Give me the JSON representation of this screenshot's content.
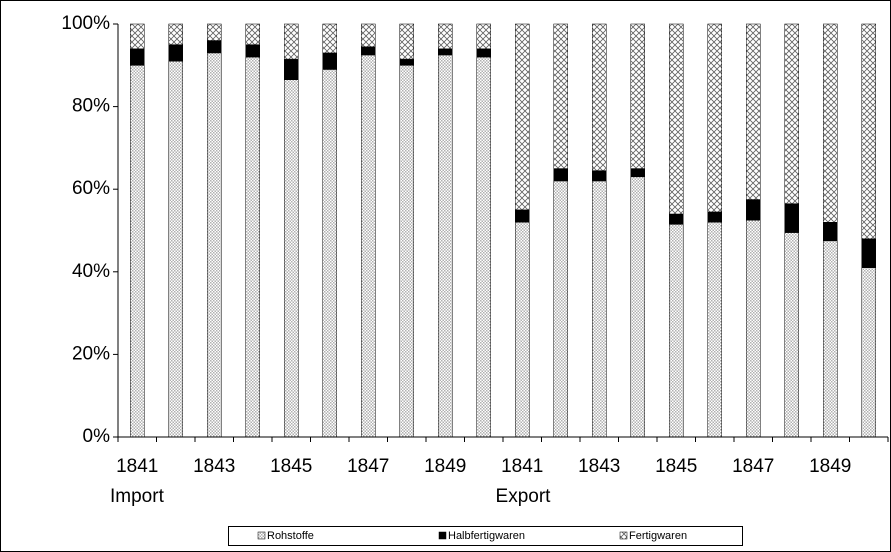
{
  "chart_data": {
    "type": "stacked_bar",
    "categories": [
      "1841",
      null,
      "1843",
      null,
      "1845",
      null,
      "1847",
      null,
      "1849",
      null,
      "1841",
      null,
      "1843",
      null,
      "1845",
      null,
      "1847",
      null,
      "1849",
      null
    ],
    "annotations": [
      "Import",
      "Export"
    ],
    "series": [
      {
        "name": "Rohstoffe",
        "color": "#b0b0b0",
        "values": [
          90,
          91,
          93,
          92,
          86.5,
          89,
          92.5,
          90,
          92.5,
          92,
          52,
          62,
          62,
          63,
          51.5,
          52,
          52.5,
          49.5,
          47.5,
          41
        ]
      },
      {
        "name": "Halbfertigwaren",
        "color": "#000000",
        "values": [
          4,
          4,
          3,
          3,
          5,
          4,
          2,
          1.5,
          1.5,
          2,
          3,
          3,
          2.5,
          2,
          2.5,
          2.5,
          5,
          7,
          4.5,
          7
        ]
      },
      {
        "name": "Fertigwaren",
        "color": "#606060",
        "values": [
          6,
          5,
          4,
          5,
          8.5,
          7,
          5.5,
          8.5,
          6,
          6,
          45,
          35,
          35.5,
          35,
          46,
          45.5,
          42.5,
          43.5,
          48,
          52
        ]
      }
    ],
    "ylim": [
      0,
      100
    ],
    "yticks": [
      {
        "value": 0,
        "label": "0%"
      },
      {
        "value": 20,
        "label": "20%"
      },
      {
        "value": 40,
        "label": "40%"
      },
      {
        "value": 60,
        "label": "60%"
      },
      {
        "value": 80,
        "label": "80%"
      },
      {
        "value": 100,
        "label": "100%"
      }
    ]
  }
}
